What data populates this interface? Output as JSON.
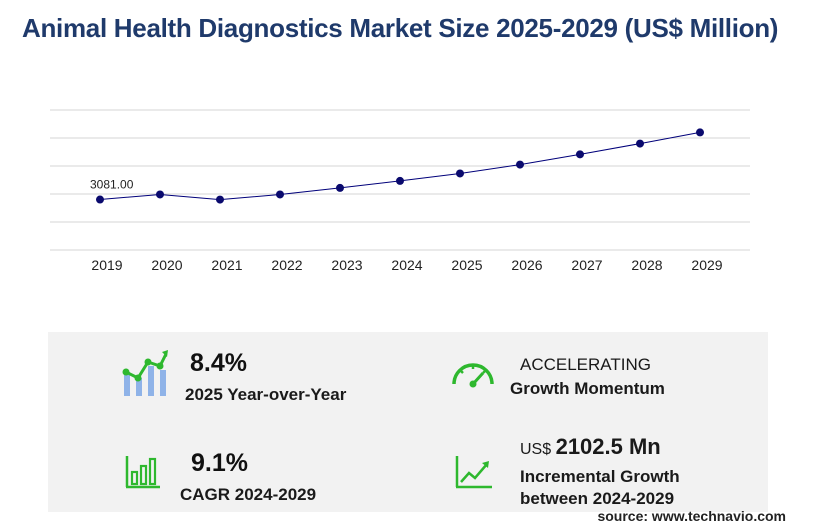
{
  "title": "Animal Health Diagnostics Market Size 2025-2029 (US$ Million)",
  "colors": {
    "title": "#1f3a6b",
    "line": "#00007a",
    "marker": "#0a0a6e",
    "grid": "#d4d4d4",
    "icon_green": "#2eb82e",
    "icon_blue": "#8fb3e8",
    "panel_bg": "#f2f2f2"
  },
  "chart_data": {
    "type": "line",
    "categories": [
      "2019",
      "2020",
      "2021",
      "2022",
      "2023",
      "2024",
      "2025",
      "2026",
      "2027",
      "2028",
      "2029"
    ],
    "series": [
      {
        "values": [
          3081.0,
          3190,
          3080,
          3190,
          3330,
          3480,
          3640,
          3830,
          4050,
          4280,
          4520
        ]
      }
    ],
    "data_labels": [
      {
        "index": 0,
        "text": "3081.00"
      }
    ],
    "ylim": [
      2000,
      5000
    ],
    "grid": true,
    "xlabel": "",
    "ylabel": ""
  },
  "stats": {
    "yoy": {
      "value": "8.4%",
      "label": "2025 Year-over-Year",
      "icon": "growth-bar-chart-icon"
    },
    "momentum": {
      "value": "ACCELERATING",
      "label": "Growth Momentum",
      "icon": "speedometer-icon"
    },
    "cagr": {
      "value": "9.1%",
      "label": "CAGR 2024-2029",
      "icon": "bar-chart-icon"
    },
    "incremental": {
      "prefix": "US$",
      "value": "2102.5 Mn",
      "label_line1": "Incremental Growth",
      "label_line2": "between 2024-2029",
      "icon": "trend-up-icon"
    }
  },
  "source": "source: www.technavio.com"
}
